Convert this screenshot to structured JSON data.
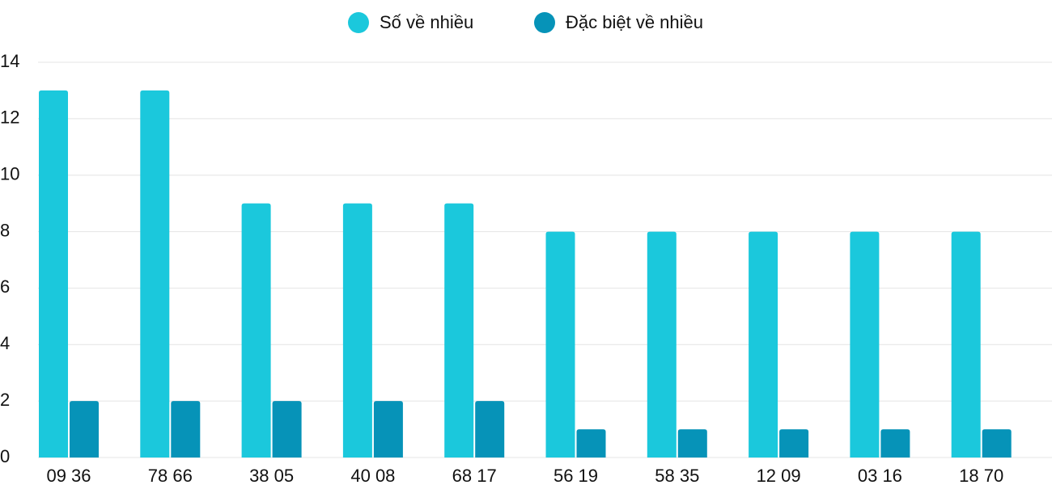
{
  "chart_data": {
    "type": "bar",
    "categories": [
      "09 36",
      "78 66",
      "38 05",
      "40 08",
      "68 17",
      "56 19",
      "58 35",
      "12 09",
      "03 16",
      "18 70"
    ],
    "series": [
      {
        "name": "Số về nhiều",
        "color": "#1bc8dc",
        "values": [
          13,
          13,
          9,
          9,
          9,
          8,
          8,
          8,
          8,
          8
        ]
      },
      {
        "name": "Đặc biệt về nhiều",
        "color": "#0693b8",
        "values": [
          2,
          2,
          2,
          2,
          2,
          1,
          1,
          1,
          1,
          1
        ]
      }
    ],
    "ylim": [
      0,
      14
    ],
    "yticks": [
      0,
      2,
      4,
      6,
      8,
      10,
      12,
      14
    ],
    "grid": true
  }
}
